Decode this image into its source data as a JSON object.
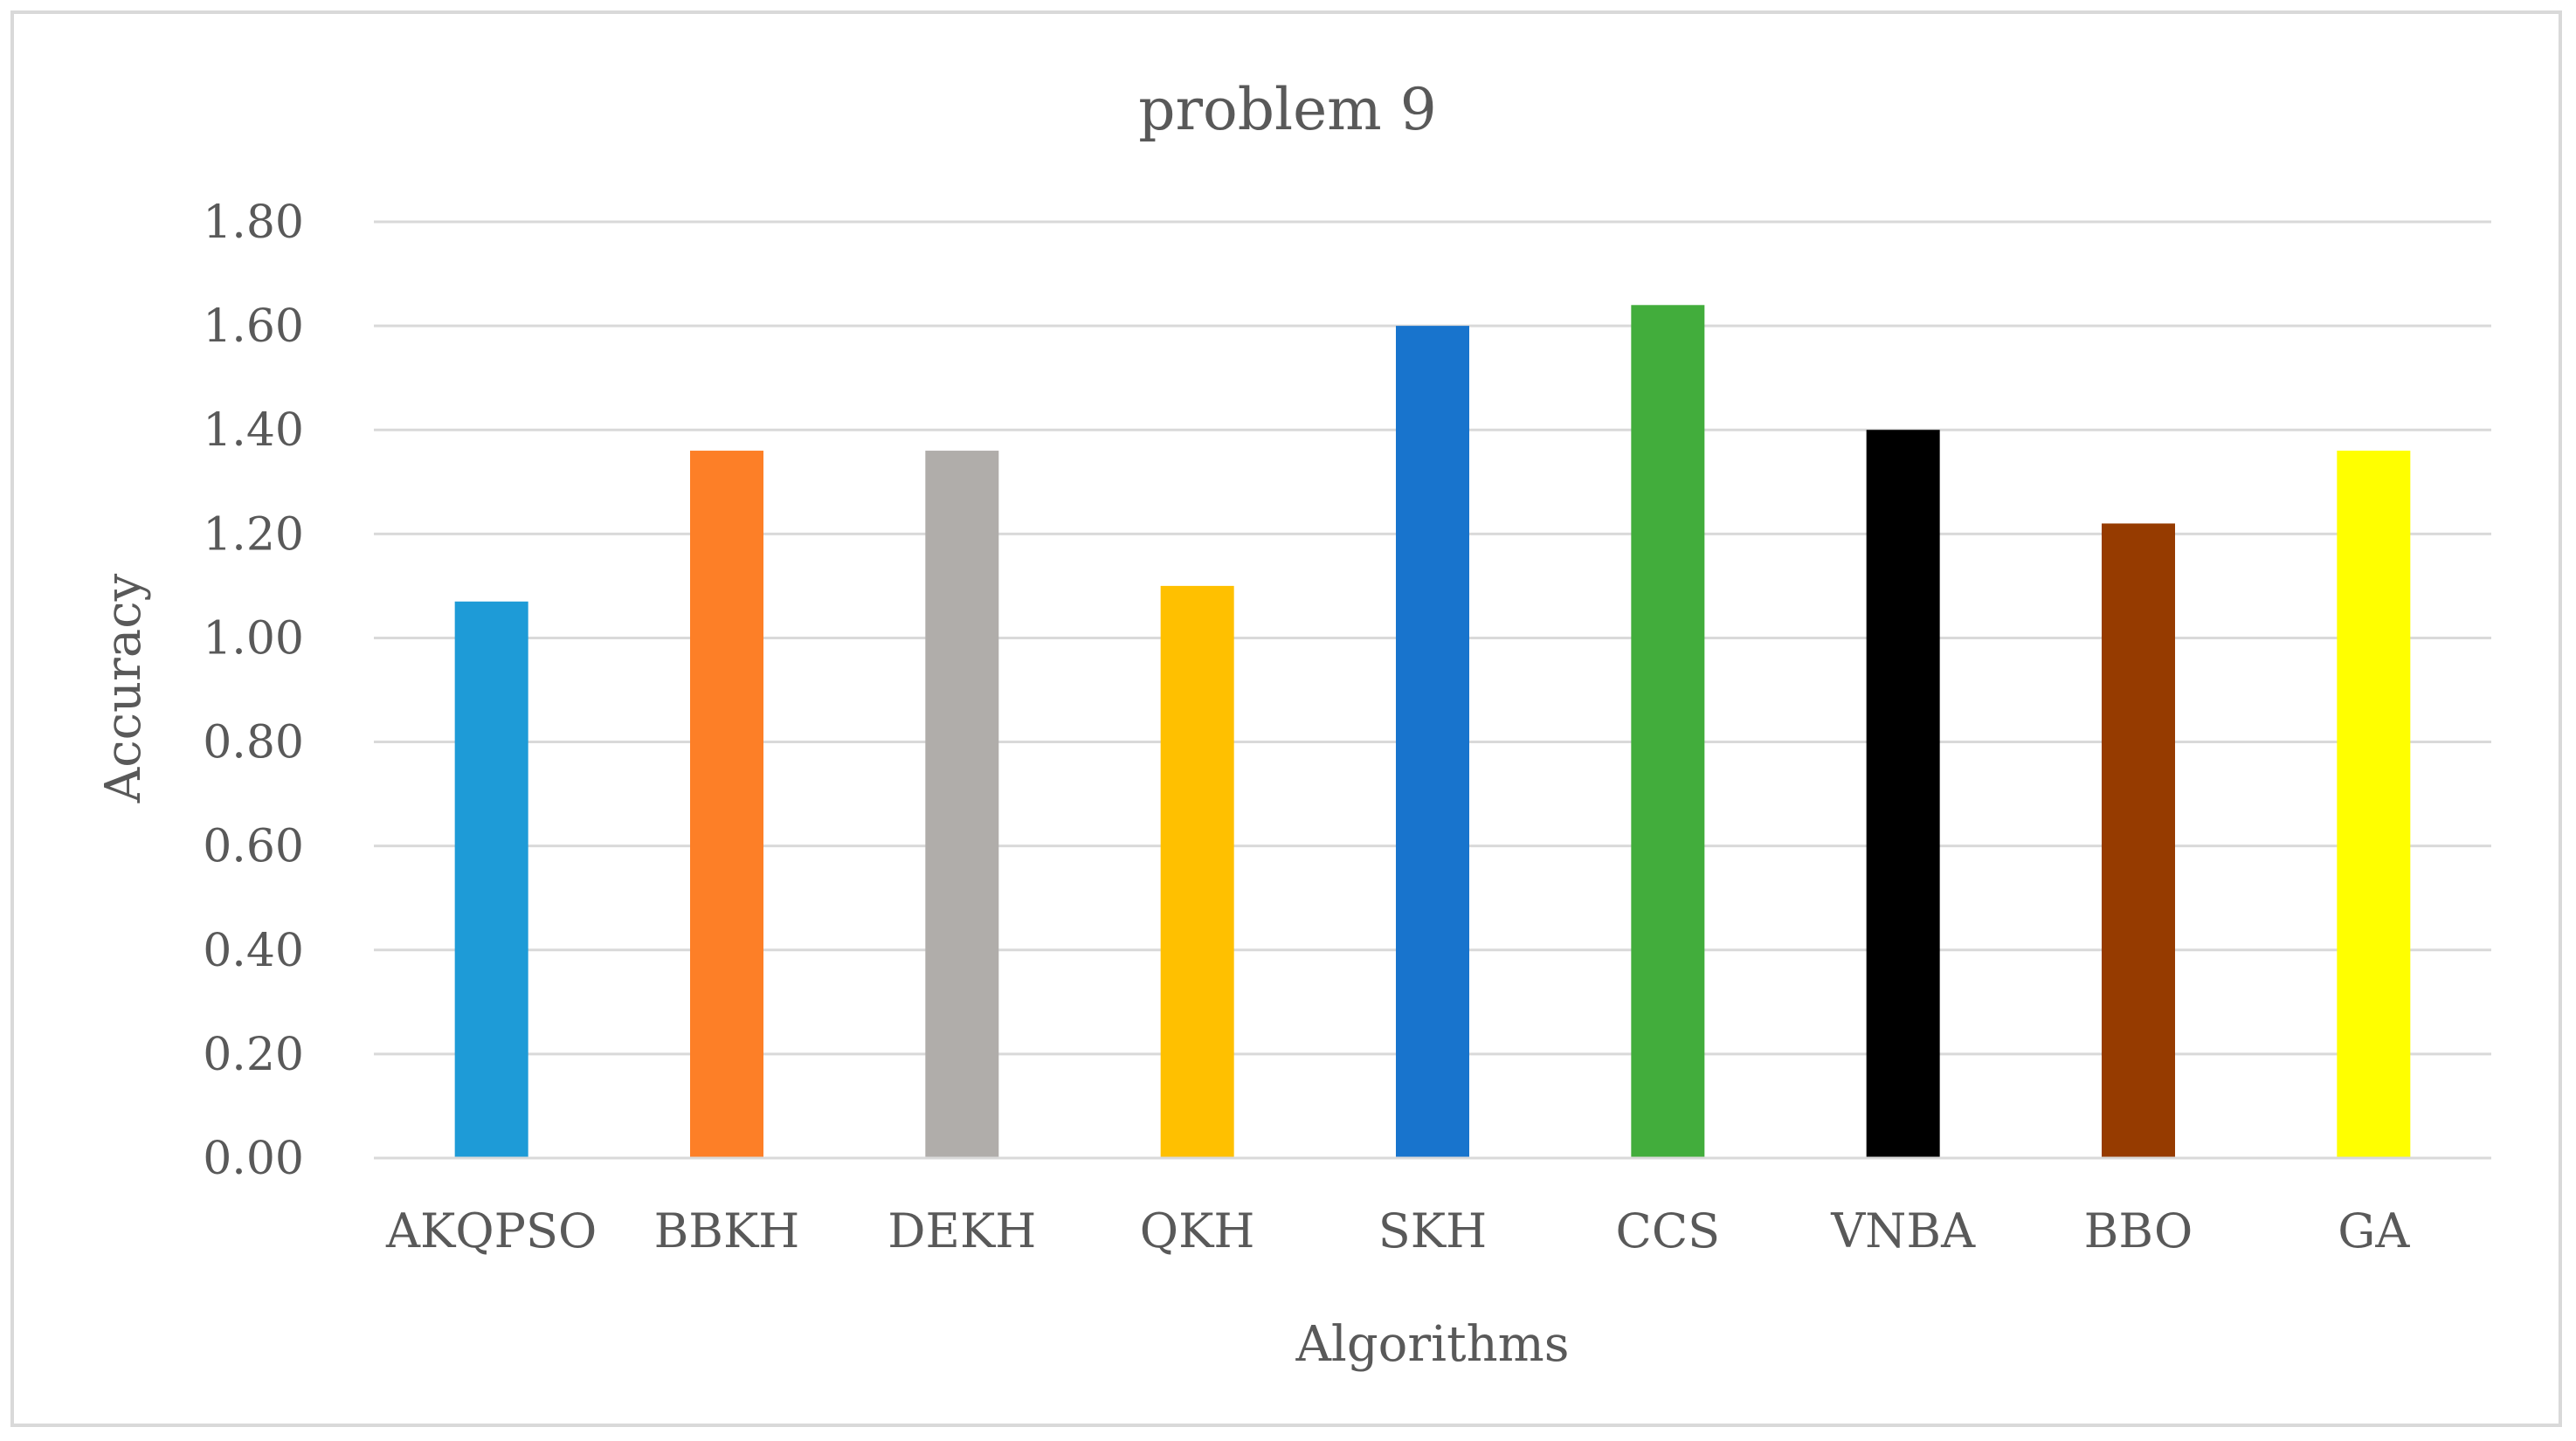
{
  "chart_data": {
    "type": "bar",
    "title": "problem 9",
    "xlabel": "Algorithms",
    "ylabel": "Accuracy",
    "categories": [
      "AKQPSO",
      "BBKH",
      "DEKH",
      "QKH",
      "SKH",
      "CCS",
      "VNBA",
      "BBO",
      "GA"
    ],
    "values": [
      1.07,
      1.36,
      1.36,
      1.1,
      1.6,
      1.64,
      1.4,
      1.22,
      1.36
    ],
    "colors": [
      "#1e9bd7",
      "#fd7f27",
      "#b0adaa",
      "#ffc000",
      "#1874cd",
      "#42ad3c",
      "#000000",
      "#963b00",
      "#ffff00"
    ],
    "ylim": [
      0,
      1.8
    ],
    "yticks": [
      "0.00",
      "0.20",
      "0.40",
      "0.60",
      "0.80",
      "1.00",
      "1.20",
      "1.40",
      "1.60",
      "1.80"
    ],
    "grid": true,
    "legend": "none"
  }
}
